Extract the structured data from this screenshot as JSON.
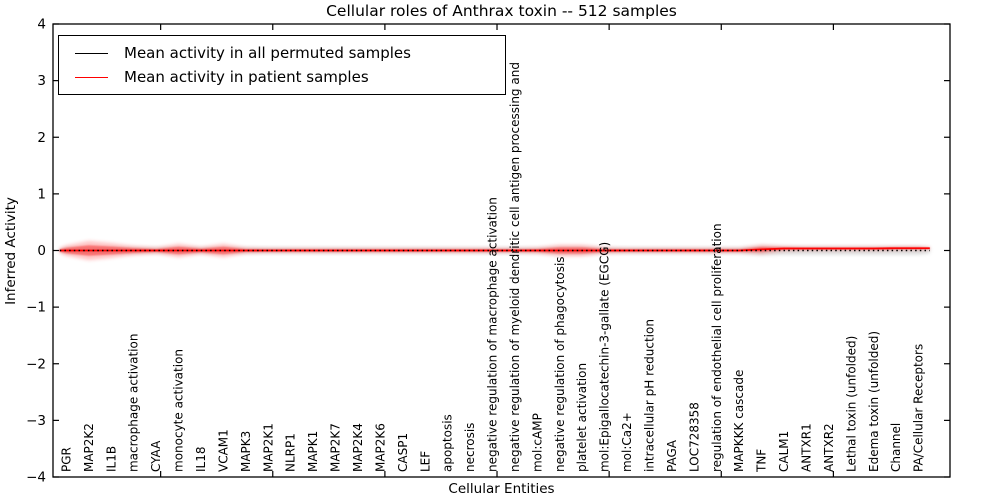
{
  "chart_data": {
    "type": "line",
    "title": "Cellular roles of Anthrax toxin -- 512 samples",
    "xlabel": "Cellular Entities",
    "ylabel": "Inferred Activity",
    "ylim": [
      -4,
      4
    ],
    "ytick_values": [
      4,
      3,
      2,
      1,
      0,
      -1,
      -2,
      -3,
      -4
    ],
    "ytick_labels": [
      "4",
      "3",
      "2",
      "1",
      "0",
      "−1",
      "−2",
      "−3",
      "−4"
    ],
    "xtick_positions": [
      4.2,
      9.2,
      14.2,
      19.2,
      24.2,
      29.2,
      34.2
    ],
    "grid": false,
    "legend_position": "upper left",
    "categories": [
      "PGR",
      "MAP2K2",
      "IL1B",
      "macrophage activation",
      "CYAA",
      "monocyte activation",
      "IL18",
      "VCAM1",
      "MAPK3",
      "MAP2K1",
      "NLRP1",
      "MAPK1",
      "MAP2K7",
      "MAP2K4",
      "MAP2K6",
      "CASP1",
      "LEF",
      "apoptosis",
      "necrosis",
      "negative regulation of macrophage activation",
      "negative regulation of myeloid dendritic cell antigen processing and",
      "mol:cAMP",
      "negative regulation of phagocytosis",
      "platelet activation",
      "mol:Epigallocatechin-3-gallate (EGCG)",
      "mol:Ca2+",
      "intracellular pH reduction",
      "PAGA",
      "LOC728358",
      "regulation of endothelial cell proliferation",
      "MAPKKK cascade",
      "TNF",
      "CALM1",
      "ANTXR1",
      "ANTXR2",
      "Lethal toxin (unfolded)",
      "Edema toxin (unfolded)",
      "Channel",
      "PA/Cellular Receptors"
    ],
    "series": [
      {
        "name": "Mean activity in all permuted samples",
        "color": "#000000",
        "line_style": "dotted",
        "band_color": "#909090",
        "values": [
          0,
          0,
          0,
          0,
          0,
          0,
          0,
          0,
          0,
          0,
          0,
          0,
          0,
          0,
          0,
          0,
          0,
          0,
          0,
          0,
          0,
          0,
          0,
          0,
          0,
          0,
          0,
          0,
          0,
          0,
          0,
          0,
          0,
          0,
          0,
          0,
          0,
          0,
          0
        ],
        "band_halfwidth": [
          0.05,
          0.05,
          0.05,
          0.05,
          0.05,
          0.05,
          0.05,
          0.05,
          0.05,
          0.05,
          0.05,
          0.05,
          0.05,
          0.05,
          0.05,
          0.05,
          0.05,
          0.05,
          0.05,
          0.05,
          0.05,
          0.05,
          0.06,
          0.06,
          0.05,
          0.05,
          0.05,
          0.05,
          0.05,
          0.05,
          0.05,
          0.08,
          0.07,
          0.07,
          0.07,
          0.07,
          0.07,
          0.07,
          0.07
        ]
      },
      {
        "name": "Mean activity in patient samples",
        "color": "#ff0000",
        "line_style": "solid",
        "band_color": "#ff2020",
        "values": [
          0,
          0,
          0,
          0,
          0,
          0,
          0,
          0,
          0,
          0,
          0,
          0,
          0,
          0,
          0,
          0,
          0,
          0,
          0,
          0,
          0,
          0,
          0,
          0,
          0,
          0,
          0,
          0,
          0,
          0,
          0,
          0.02,
          0.035,
          0.035,
          0.035,
          0.035,
          0.035,
          0.04,
          0.04
        ],
        "band_halfwidth": [
          0.09,
          0.17,
          0.13,
          0.08,
          0.05,
          0.12,
          0.06,
          0.12,
          0.05,
          0.04,
          0.04,
          0.04,
          0.04,
          0.04,
          0.04,
          0.04,
          0.04,
          0.04,
          0.04,
          0.04,
          0.04,
          0.05,
          0.1,
          0.1,
          0.05,
          0.04,
          0.04,
          0.04,
          0.04,
          0.04,
          0.04,
          0.08,
          0.04,
          0.03,
          0.03,
          0.03,
          0.03,
          0.03,
          0.03
        ]
      }
    ]
  }
}
